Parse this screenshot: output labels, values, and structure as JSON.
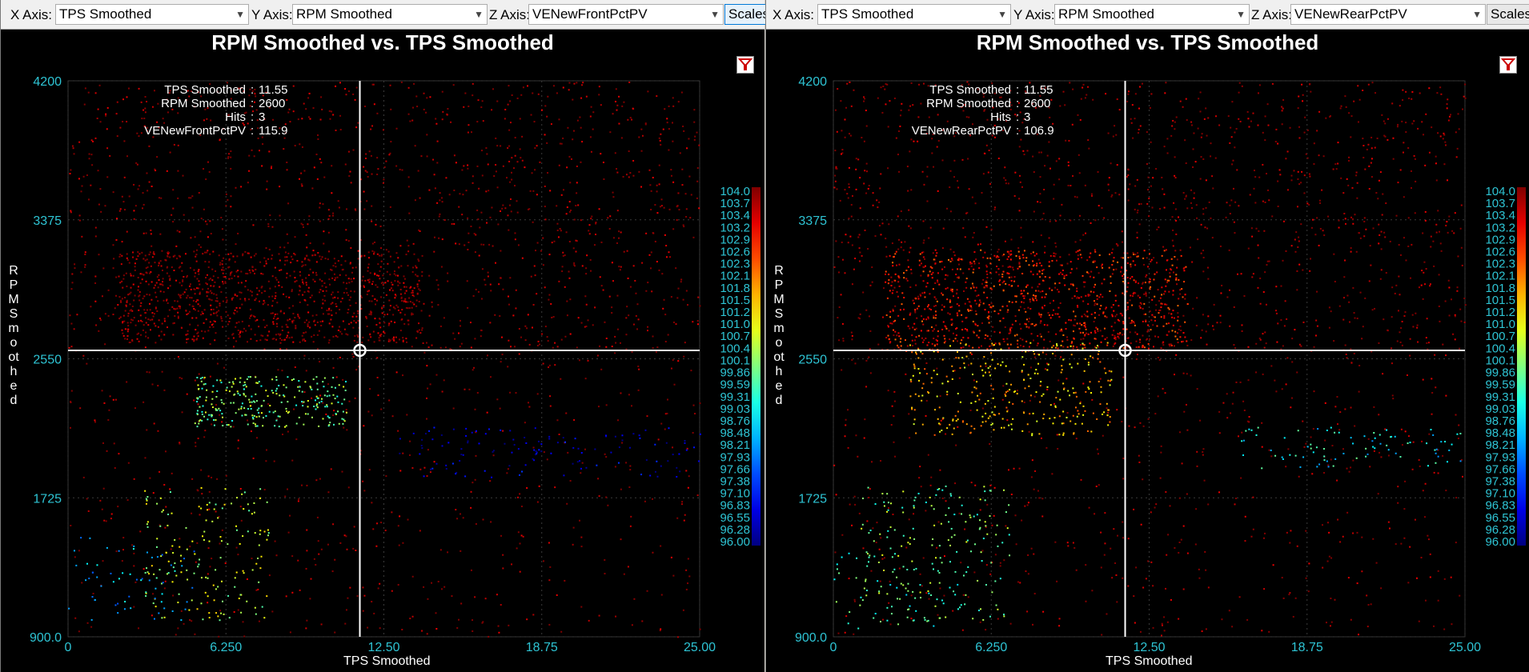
{
  "panels": [
    {
      "toolbar": {
        "x_label": "X Axis:",
        "x_value": "TPS Smoothed",
        "y_label": "Y Axis:",
        "y_value": "RPM Smoothed",
        "z_label": "Z Axis:",
        "z_value": "VENewFrontPctPV",
        "scales_label": "Scales"
      },
      "title": "RPM Smoothed vs. TPS Smoothed",
      "cursor_info": [
        {
          "label": "TPS Smoothed",
          "value": "11.55"
        },
        {
          "label": "RPM Smoothed",
          "value": "2600"
        },
        {
          "label": "Hits",
          "value": "3"
        },
        {
          "label": "VENewFrontPctPV",
          "value": "115.9"
        }
      ],
      "xlabel": "TPS Smoothed",
      "ylabel": "RPM Smoothed"
    },
    {
      "toolbar": {
        "x_label": "X Axis:",
        "x_value": "TPS Smoothed",
        "y_label": "Y Axis:",
        "y_value": "RPM Smoothed",
        "z_label": "Z Axis:",
        "z_value": "VENewRearPctPV",
        "scales_label": "Scales"
      },
      "title": "RPM Smoothed vs. TPS Smoothed",
      "cursor_info": [
        {
          "label": "TPS Smoothed",
          "value": "11.55"
        },
        {
          "label": "RPM Smoothed",
          "value": "2600"
        },
        {
          "label": "Hits",
          "value": "3"
        },
        {
          "label": "VENewRearPctPV",
          "value": "106.9"
        }
      ],
      "xlabel": "TPS Smoothed",
      "ylabel": "RPM Smoothed"
    }
  ],
  "chart_data": [
    {
      "type": "scatter",
      "title": "RPM Smoothed vs. TPS Smoothed",
      "xlabel": "TPS Smoothed",
      "ylabel": "RPM Smoothed",
      "zlabel": "VENewFrontPctPV",
      "xlim": [
        0,
        25
      ],
      "ylim": [
        900,
        4200
      ],
      "x_ticks": [
        "0",
        "6.250",
        "12.50",
        "18.75",
        "25.00"
      ],
      "y_ticks": [
        "900.0",
        "1725",
        "2550",
        "3375",
        "4200"
      ],
      "cursor": {
        "x": 11.55,
        "y": 2600
      },
      "colorscale_labels": [
        "104.0",
        "103.7",
        "103.4",
        "103.2",
        "102.9",
        "102.6",
        "102.3",
        "102.1",
        "101.8",
        "101.5",
        "101.2",
        "101.0",
        "100.7",
        "100.4",
        "100.1",
        "99.86",
        "99.59",
        "99.31",
        "99.03",
        "98.76",
        "98.48",
        "98.21",
        "97.93",
        "97.66",
        "97.38",
        "97.10",
        "96.83",
        "96.55",
        "96.28",
        "96.00"
      ],
      "colorscale": {
        "min": 96.0,
        "max": 104.0
      },
      "grid": true,
      "clusters": [
        {
          "x_range": [
            0,
            25
          ],
          "y_range": [
            2600,
            4200
          ],
          "z": 104,
          "n": 1300
        },
        {
          "x_range": [
            2,
            14
          ],
          "y_range": [
            2650,
            3200
          ],
          "z": 104,
          "n": 900
        },
        {
          "x_range": [
            0,
            25
          ],
          "y_range": [
            900,
            2600
          ],
          "z": 104,
          "n": 550
        },
        {
          "x_range": [
            5,
            11
          ],
          "y_range": [
            2150,
            2450
          ],
          "z": 100,
          "n": 260
        },
        {
          "x_range": [
            3,
            8
          ],
          "y_range": [
            1000,
            1800
          ],
          "z": 100.5,
          "n": 160
        },
        {
          "x_range": [
            13,
            25
          ],
          "y_range": [
            1850,
            2150
          ],
          "z": 96.5,
          "n": 120
        },
        {
          "x_range": [
            0,
            5
          ],
          "y_range": [
            1000,
            1500
          ],
          "z": 98.5,
          "n": 60
        }
      ]
    },
    {
      "type": "scatter",
      "title": "RPM Smoothed vs. TPS Smoothed",
      "xlabel": "TPS Smoothed",
      "ylabel": "RPM Smoothed",
      "zlabel": "VENewRearPctPV",
      "xlim": [
        0,
        25
      ],
      "ylim": [
        900,
        4200
      ],
      "x_ticks": [
        "0",
        "6.250",
        "12.50",
        "18.75",
        "25.00"
      ],
      "y_ticks": [
        "900.0",
        "1725",
        "2550",
        "3375",
        "4200"
      ],
      "cursor": {
        "x": 11.55,
        "y": 2600
      },
      "colorscale_labels": [
        "104.0",
        "103.7",
        "103.4",
        "103.2",
        "102.9",
        "102.6",
        "102.3",
        "102.1",
        "101.8",
        "101.5",
        "101.2",
        "101.0",
        "100.7",
        "100.4",
        "100.1",
        "99.86",
        "99.59",
        "99.31",
        "99.03",
        "98.76",
        "98.48",
        "98.21",
        "97.93",
        "97.66",
        "97.38",
        "97.10",
        "96.83",
        "96.55",
        "96.28",
        "96.00"
      ],
      "colorscale": {
        "min": 96.0,
        "max": 104.0
      },
      "grid": true,
      "clusters": [
        {
          "x_range": [
            0,
            25
          ],
          "y_range": [
            2600,
            4200
          ],
          "z": 104,
          "n": 1300
        },
        {
          "x_range": [
            2,
            14
          ],
          "y_range": [
            2600,
            3200
          ],
          "z": 103,
          "n": 900
        },
        {
          "x_range": [
            0,
            25
          ],
          "y_range": [
            900,
            2600
          ],
          "z": 104,
          "n": 550
        },
        {
          "x_range": [
            3,
            11
          ],
          "y_range": [
            2100,
            2650
          ],
          "z": 101.5,
          "n": 320
        },
        {
          "x_range": [
            1,
            7
          ],
          "y_range": [
            1000,
            1800
          ],
          "z": 100,
          "n": 180
        },
        {
          "x_range": [
            16,
            25
          ],
          "y_range": [
            1900,
            2150
          ],
          "z": 99,
          "n": 80
        },
        {
          "x_range": [
            0,
            5
          ],
          "y_range": [
            950,
            1400
          ],
          "z": 99.5,
          "n": 50
        }
      ]
    }
  ]
}
